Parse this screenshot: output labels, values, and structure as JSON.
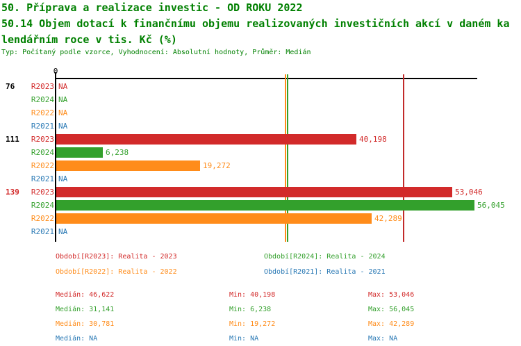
{
  "header": {
    "line1": "50. Příprava a realizace investic - OD ROKU 2022",
    "line2": "50.14 Objem dotací k finančnímu objemu realizovaných investičních akcí v daném ka",
    "line3": "lendářním roce v tis. Kč (%)",
    "meta": "Typ: Počítaný podle vzorce, Vyhodnocení: Absolutní hodnoty, Průměr: Medián",
    "title_color": "#008000"
  },
  "chart_data": {
    "type": "bar",
    "orientation": "horizontal",
    "x_axis": {
      "zero_label": "0",
      "xlim": [
        0,
        56045
      ],
      "grid": false
    },
    "series_order": [
      "R2023",
      "R2024",
      "R2022",
      "R2021"
    ],
    "series_colors": {
      "R2023": "#d22a2a",
      "R2024": "#33a02c",
      "R2022": "#ff8c1a",
      "R2021": "#2878b4"
    },
    "groups": [
      {
        "id": "76",
        "label_color": "#000000",
        "bars": [
          {
            "series": "R2023",
            "value": null,
            "label": "NA"
          },
          {
            "series": "R2024",
            "value": null,
            "label": "NA"
          },
          {
            "series": "R2022",
            "value": null,
            "label": "NA"
          },
          {
            "series": "R2021",
            "value": null,
            "label": "NA"
          }
        ]
      },
      {
        "id": "111",
        "label_color": "#000000",
        "bars": [
          {
            "series": "R2023",
            "value": 40198,
            "label": "40,198"
          },
          {
            "series": "R2024",
            "value": 6238,
            "label": "6,238"
          },
          {
            "series": "R2022",
            "value": 19272,
            "label": "19,272"
          },
          {
            "series": "R2021",
            "value": null,
            "label": "NA"
          }
        ]
      },
      {
        "id": "139",
        "label_color": "#d22a2a",
        "bars": [
          {
            "series": "R2023",
            "value": 53046,
            "label": "53,046"
          },
          {
            "series": "R2024",
            "value": 56045,
            "label": "56,045"
          },
          {
            "series": "R2022",
            "value": 42289,
            "label": "42,289"
          },
          {
            "series": "R2021",
            "value": null,
            "label": "NA"
          }
        ]
      }
    ],
    "median_lines": [
      {
        "series": "R2023",
        "value": 46622,
        "color": "#c22a2a"
      },
      {
        "series": "R2024",
        "value": 31141,
        "color": "#33a02c"
      },
      {
        "series": "R2022",
        "value": 30781,
        "color": "#ff8c1a"
      }
    ]
  },
  "legend": {
    "items": [
      {
        "series": "R2023",
        "label": "Období[R2023]: Realita - 2023"
      },
      {
        "series": "R2024",
        "label": "Období[R2024]: Realita - 2024"
      },
      {
        "series": "R2022",
        "label": "Období[R2022]: Realita - 2022"
      },
      {
        "series": "R2021",
        "label": "Období[R2021]: Realita - 2021"
      }
    ]
  },
  "stats": {
    "rows": [
      {
        "series": "R2023",
        "median": "Medián: 46,622",
        "min": "Min: 40,198",
        "max": "Max: 53,046"
      },
      {
        "series": "R2024",
        "median": "Medián: 31,141",
        "min": "Min: 6,238",
        "max": "Max: 56,045"
      },
      {
        "series": "R2022",
        "median": "Medián: 30,781",
        "min": "Min: 19,272",
        "max": "Max: 42,289"
      },
      {
        "series": "R2021",
        "median": "Medián: NA",
        "min": "Min: NA",
        "max": "Max: NA"
      }
    ]
  }
}
